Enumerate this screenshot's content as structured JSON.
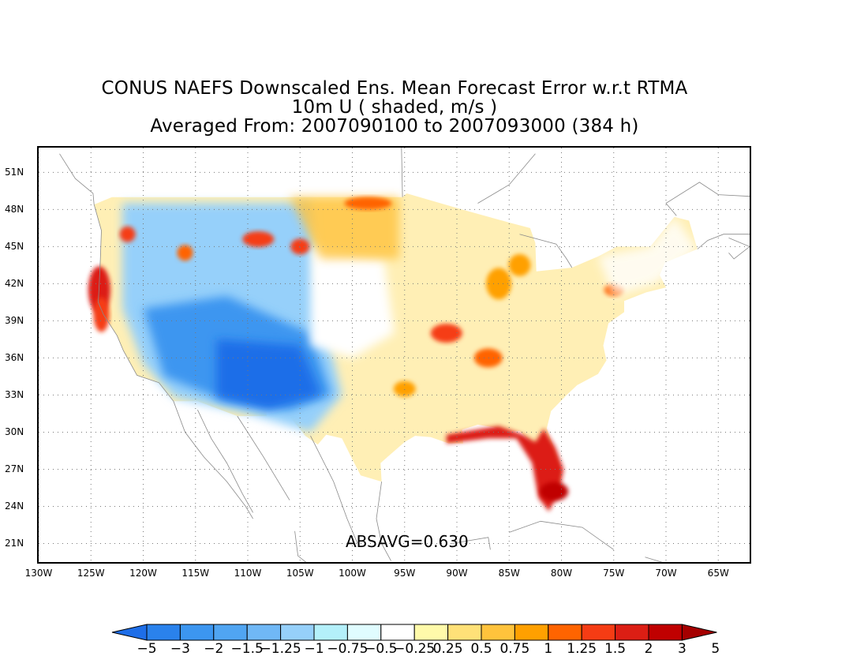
{
  "title": {
    "line1": "CONUS NAEFS Downscaled Ens. Mean Forecast Error w.r.t RTMA",
    "line2": "10m U ( shaded, m/s )",
    "line3": "Averaged From: 2007090100 to 2007093000 (384 h)"
  },
  "annotation": "ABSAVG=0.630",
  "map": {
    "lon_range": [
      -130,
      -62
    ],
    "lat_range": [
      19.5,
      53
    ],
    "lat_ticks": [
      "51N",
      "48N",
      "45N",
      "42N",
      "39N",
      "36N",
      "33N",
      "30N",
      "27N",
      "24N",
      "21N"
    ],
    "lat_values": [
      51,
      48,
      45,
      42,
      39,
      36,
      33,
      30,
      27,
      24,
      21
    ],
    "lon_ticks": [
      "130W",
      "125W",
      "120W",
      "115W",
      "110W",
      "105W",
      "100W",
      "95W",
      "90W",
      "85W",
      "80W",
      "75W",
      "70W",
      "65W"
    ],
    "lon_values": [
      -130,
      -125,
      -120,
      -115,
      -110,
      -105,
      -100,
      -95,
      -90,
      -85,
      -80,
      -75,
      -70,
      -65
    ],
    "grid": "dotted"
  },
  "colorbar": {
    "labels": [
      "−5",
      "−3",
      "−2",
      "−1.5",
      "−1.25",
      "−1",
      "−0.75",
      "−0.5",
      "−0.25",
      "0.25",
      "0.5",
      "0.75",
      "1",
      "1.25",
      "1.5",
      "2",
      "3",
      "5"
    ],
    "colors": [
      "#1e6ee8",
      "#2a82ec",
      "#3c96f0",
      "#50a5f2",
      "#70b8f6",
      "#96d0fa",
      "#b4f0fa",
      "#e0fcff",
      "#ffffff",
      "#fffaaa",
      "#ffe178",
      "#ffc33c",
      "#ffa000",
      "#ff6400",
      "#f53c14",
      "#dc1e14",
      "#c00000",
      "#a50000"
    ]
  }
}
